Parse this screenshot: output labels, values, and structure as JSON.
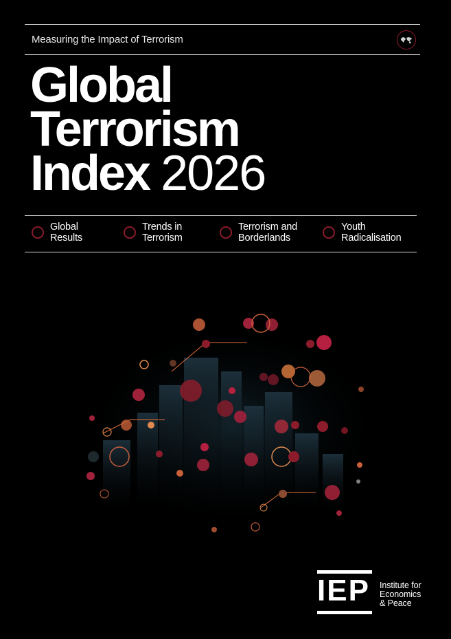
{
  "header": {
    "subtitle": "Measuring the Impact of Terrorism",
    "badge_icon": "world-map-icon"
  },
  "title": {
    "line1": "Global",
    "line2": "Terrorism",
    "line3_bold": "Index",
    "line3_year": "2026"
  },
  "topics": [
    {
      "line1": "Global",
      "line2": "Results"
    },
    {
      "line1": "Trends in",
      "line2": "Terrorism"
    },
    {
      "line1": "Terrorism and",
      "line2": "Borderlands"
    },
    {
      "line1": "Youth",
      "line2": "Radicalisation"
    }
  ],
  "logo": {
    "letters": "IEP",
    "name_line1": "Institute for",
    "name_line2": "Economics",
    "name_line3": "& Peace"
  },
  "colors": {
    "background": "#000000",
    "accent_red": "#8c1c2c",
    "orange": "#e0703a"
  }
}
